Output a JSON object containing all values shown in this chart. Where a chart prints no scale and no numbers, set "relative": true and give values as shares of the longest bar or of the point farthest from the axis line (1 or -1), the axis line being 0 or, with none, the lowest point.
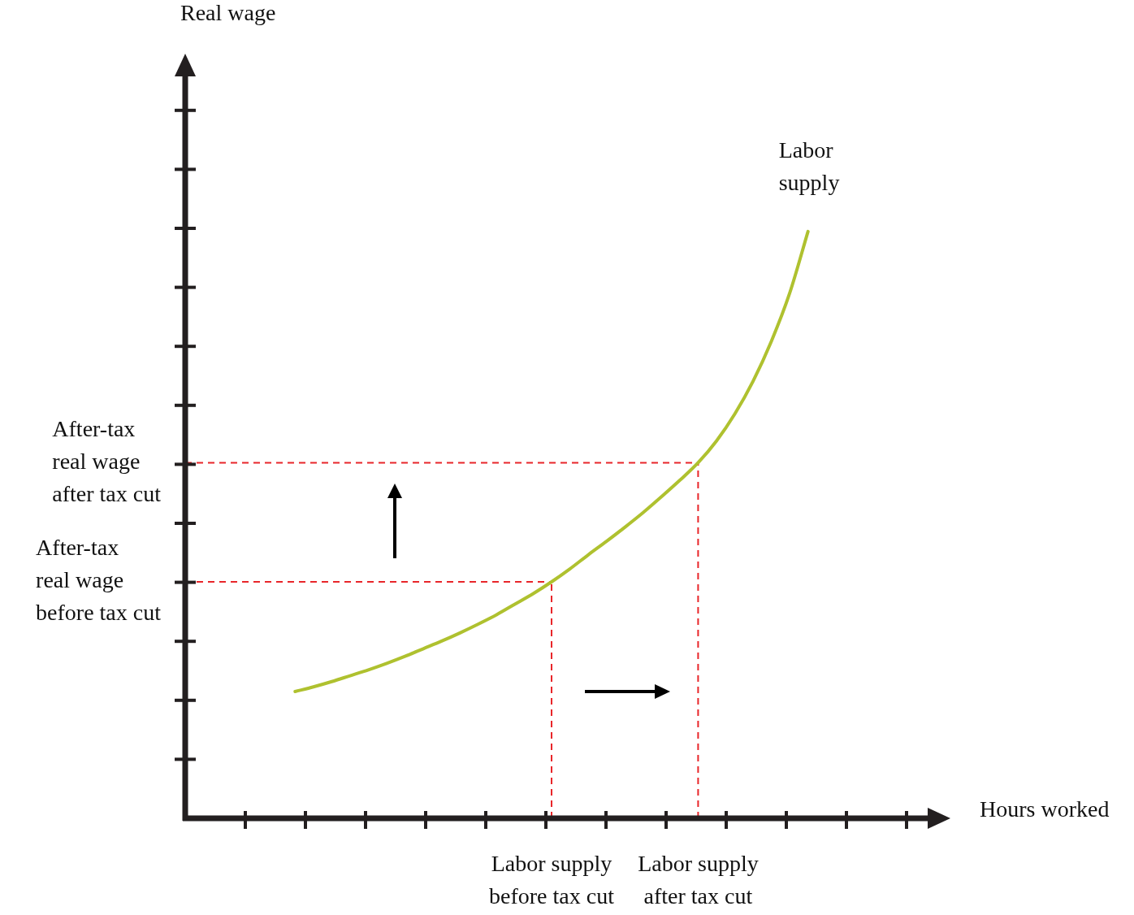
{
  "chart_data": {
    "type": "line",
    "relative": true,
    "xlabel": "Hours worked",
    "annotations": [
      "Real wage"
    ],
    "marker": "none",
    "line_style": "solid",
    "categories": [
      null,
      null,
      null,
      null,
      null,
      null,
      null,
      null,
      null,
      null,
      null,
      null,
      null,
      null,
      null,
      null,
      null,
      null,
      null,
      null,
      "Labor supply before tax cut",
      null,
      null,
      null,
      null,
      null,
      null,
      null,
      "Labor supply after tax cut",
      null,
      null,
      null,
      null,
      null,
      null,
      null,
      null,
      null,
      null,
      null,
      null
    ],
    "series": [
      {
        "name": "Labor supply",
        "color": "#afc12f",
        "values": [
          null,
          null,
          null,
          null,
          null,
          null,
          0.216,
          0.224,
          0.233,
          0.243,
          0.253,
          0.264,
          0.276,
          0.289,
          0.302,
          0.316,
          0.331,
          0.347,
          0.365,
          0.383,
          0.403,
          0.425,
          0.449,
          0.472,
          0.496,
          0.521,
          0.548,
          0.576,
          0.606,
          0.643,
          0.689,
          0.745,
          0.813,
          0.895,
          1,
          null,
          null,
          null,
          null,
          null,
          null
        ]
      }
    ],
    "ref_lines": [
      {
        "axis": "x",
        "value": "Labor supply before tax cut",
        "color": "#e8262a",
        "line_style": "dashed"
      },
      {
        "axis": "x",
        "value": "Labor supply after tax cut",
        "color": "#e8262a",
        "line_style": "dashed"
      },
      {
        "axis": "y",
        "value": 0.606,
        "label": "After-tax\nreal wage\nafter tax cut",
        "color": "#e8262a",
        "line_style": "dashed"
      },
      {
        "axis": "y",
        "value": 0.403,
        "label": "After-tax\nreal wage\nbefore tax cut",
        "color": "#e8262a",
        "line_style": "dashed"
      }
    ]
  }
}
